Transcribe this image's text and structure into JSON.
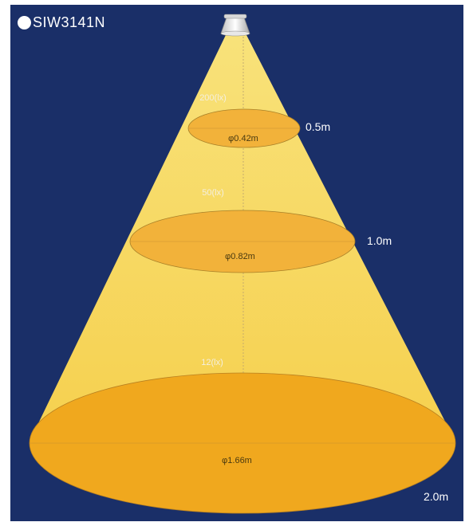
{
  "model": "SIW3141N",
  "colors": {
    "background": "#1a2f68",
    "cone": "#f6d35a",
    "ellipse": "#f2b23a",
    "ellipse_large": "#f0a81e"
  },
  "levels": [
    {
      "lux": "200(lx)",
      "diameter": "φ0.42m",
      "distance": "0.5m"
    },
    {
      "lux": "50(lx)",
      "diameter": "φ0.82m",
      "distance": "1.0m"
    },
    {
      "lux": "12(lx)",
      "diameter": "φ1.66m",
      "distance": "2.0m"
    }
  ]
}
